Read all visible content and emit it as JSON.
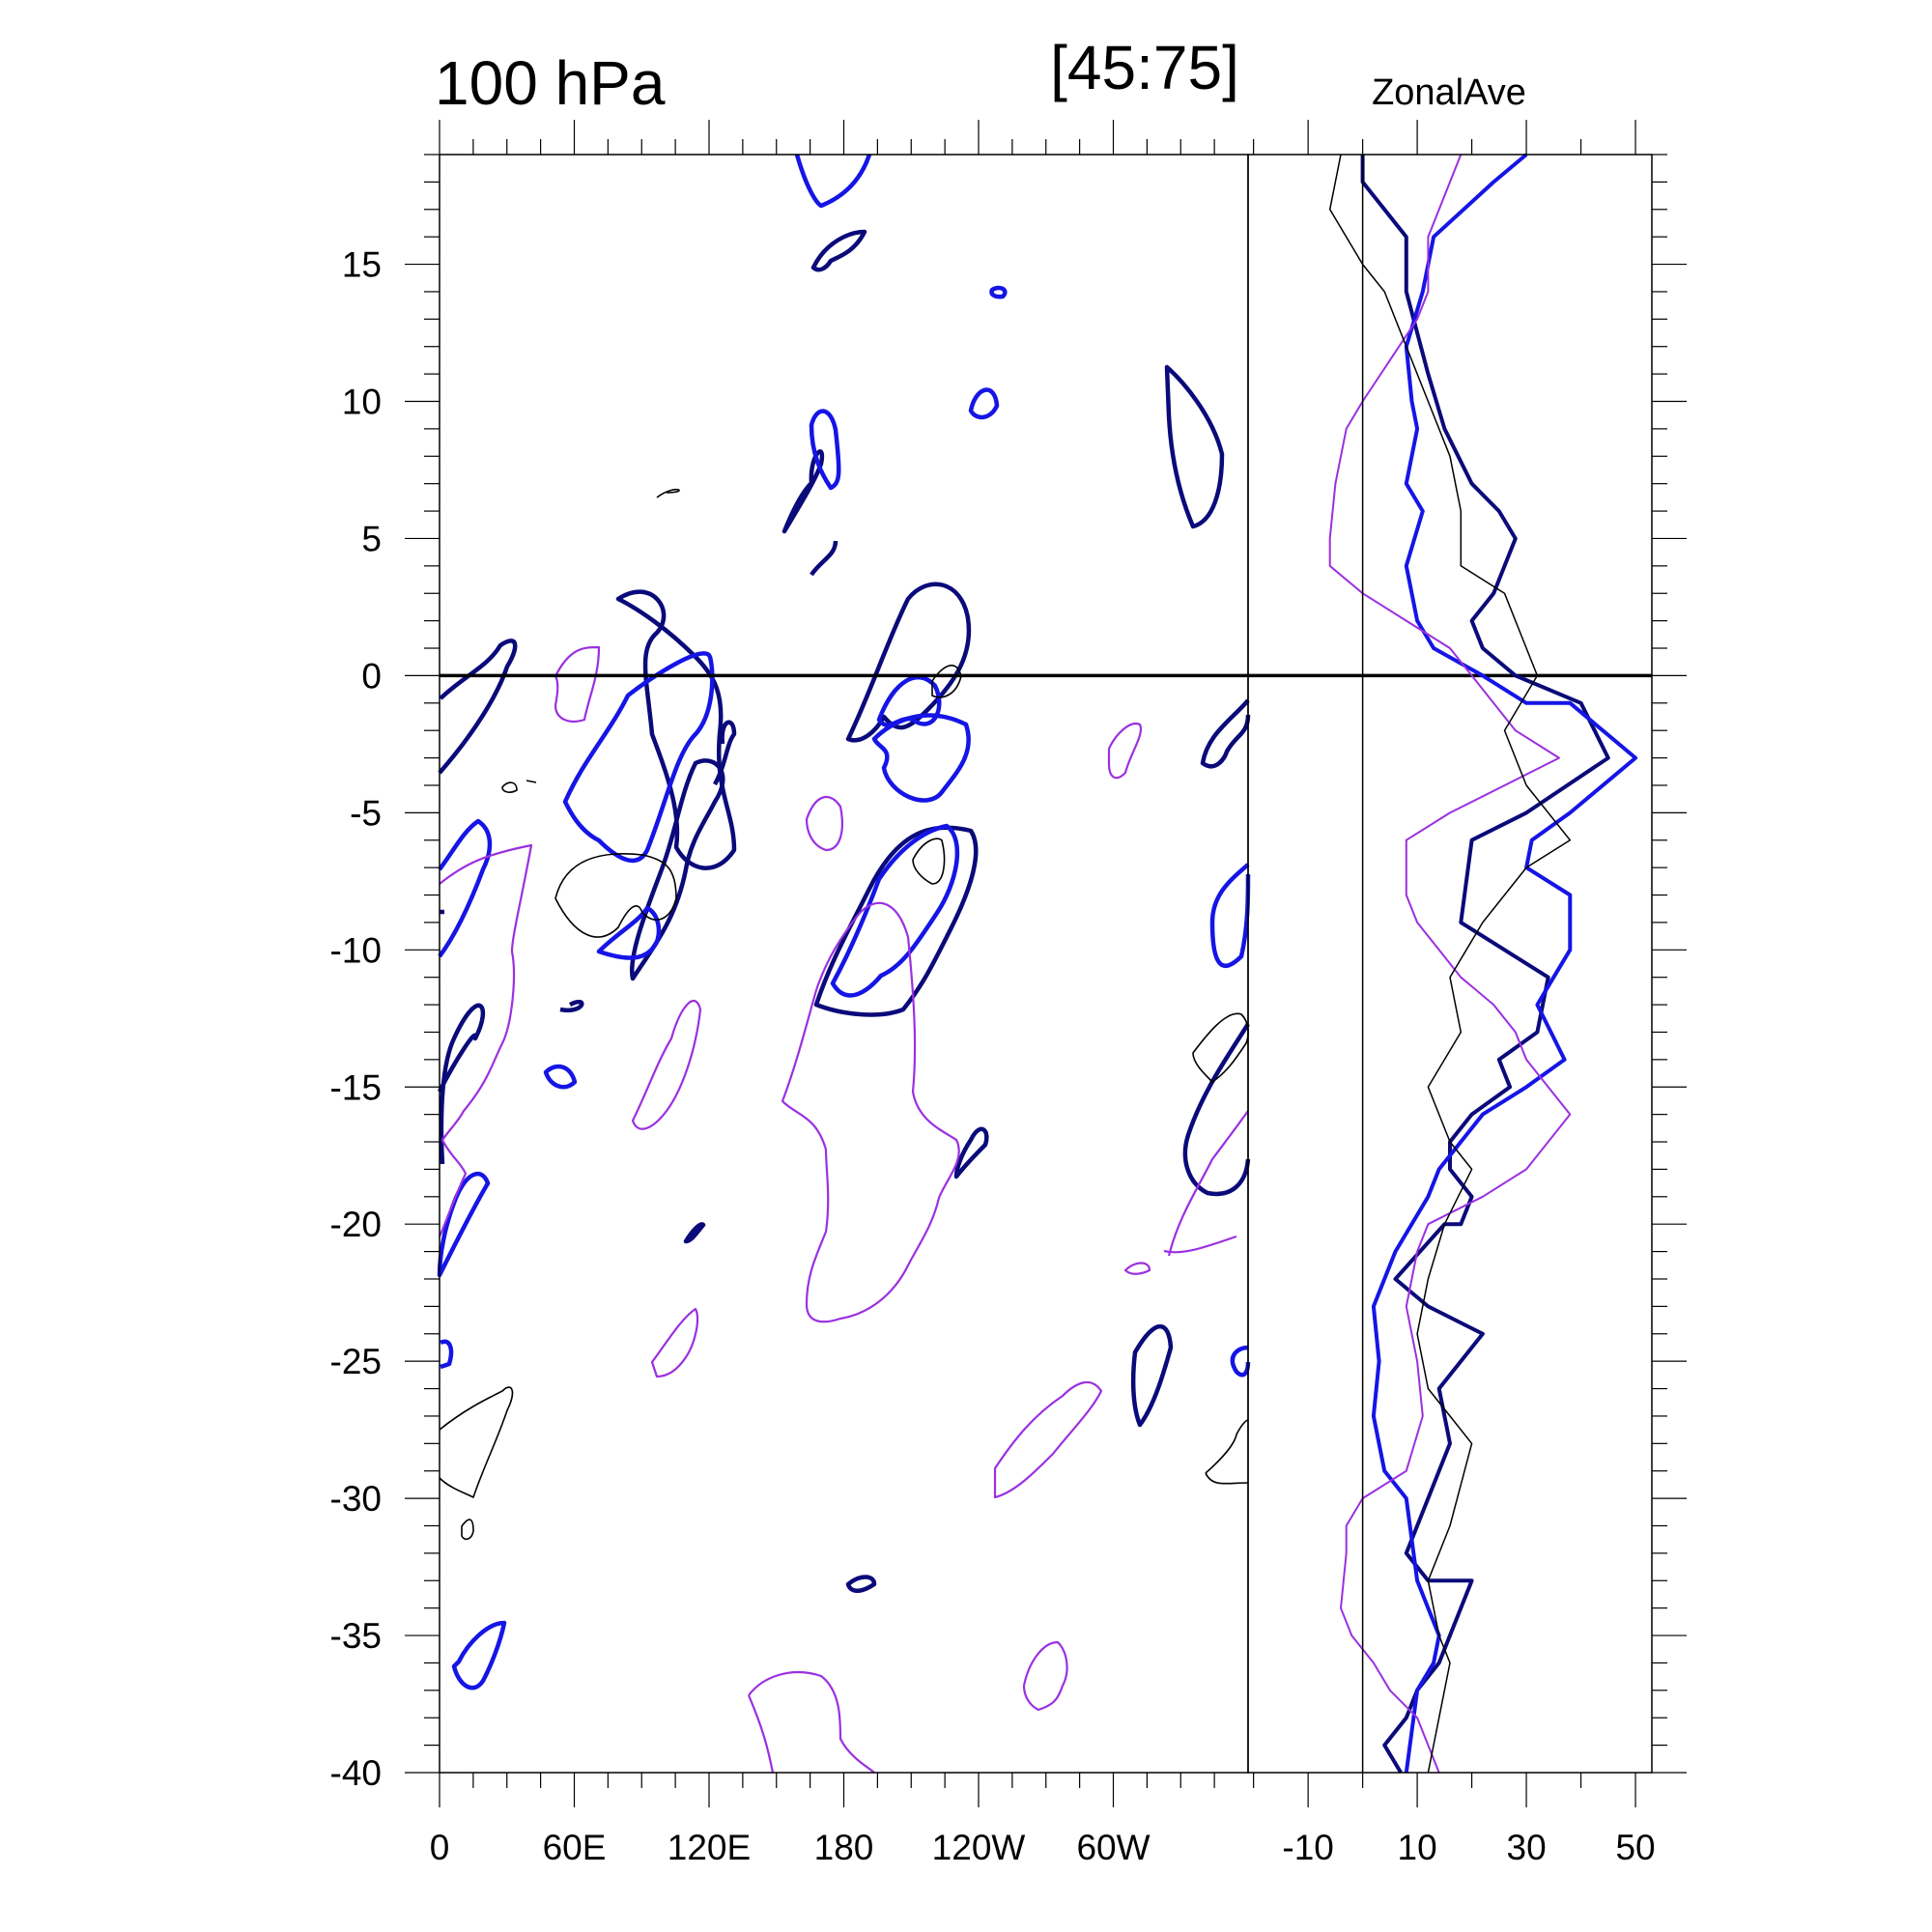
{
  "chart_data": [
    {
      "type": "contour",
      "title_left": "100 hPa",
      "title_center": "[45:75]",
      "x_ticks": [
        "0",
        "60E",
        "120E",
        "180",
        "120W",
        "60W"
      ],
      "y_ticks": [
        "15",
        "10",
        "5",
        "0",
        "-5",
        "-10",
        "-15",
        "-20",
        "-25",
        "-30",
        "-35",
        "-40"
      ],
      "ylim": [
        -40,
        19
      ],
      "reference_line_y": 0,
      "series": [
        {
          "color": "#0a0a7a",
          "linewidth": "thick"
        },
        {
          "color": "#1515e6",
          "linewidth": "thick"
        },
        {
          "color": "#9b30e0",
          "linewidth": "thin"
        },
        {
          "color": "#000000",
          "linewidth": "thin"
        }
      ]
    },
    {
      "type": "line",
      "title": "ZonalAve",
      "x_ticks": [
        "-10",
        "10",
        "30",
        "50"
      ],
      "xlim": [
        -21,
        53
      ],
      "ylim": [
        -40,
        19
      ],
      "reference_line_x": 0,
      "reference_line_y": 0,
      "series": [
        {
          "color": "#0a0a7a",
          "width": 4,
          "points": [
            [
              0,
              19
            ],
            [
              0,
              18
            ],
            [
              8,
              16
            ],
            [
              8,
              14
            ],
            [
              12,
              11
            ],
            [
              15,
              9
            ],
            [
              20,
              7
            ],
            [
              25,
              6
            ],
            [
              28,
              5
            ],
            [
              24,
              3
            ],
            [
              20,
              2
            ],
            [
              22,
              1
            ],
            [
              28,
              0
            ],
            [
              40,
              -1
            ],
            [
              45,
              -3
            ],
            [
              30,
              -5
            ],
            [
              20,
              -6
            ],
            [
              18,
              -9
            ],
            [
              26,
              -10
            ],
            [
              34,
              -11
            ],
            [
              32,
              -13
            ],
            [
              25,
              -14
            ],
            [
              27,
              -15
            ],
            [
              20,
              -16
            ],
            [
              16,
              -17
            ],
            [
              16,
              -18
            ],
            [
              20,
              -19
            ],
            [
              18,
              -20
            ],
            [
              15,
              -20
            ],
            [
              6,
              -22
            ],
            [
              12,
              -23
            ],
            [
              22,
              -24
            ],
            [
              14,
              -26
            ],
            [
              16,
              -28
            ],
            [
              12,
              -30
            ],
            [
              10,
              -31
            ],
            [
              8,
              -32
            ],
            [
              12,
              -33
            ],
            [
              20,
              -33
            ],
            [
              14,
              -36
            ],
            [
              10,
              -37
            ],
            [
              8,
              -38
            ],
            [
              4,
              -39
            ],
            [
              7,
              -40
            ]
          ]
        },
        {
          "color": "#1515e6",
          "width": 4,
          "points": [
            [
              30,
              19
            ],
            [
              24,
              18
            ],
            [
              13,
              16
            ],
            [
              11,
              14
            ],
            [
              8,
              12
            ],
            [
              9,
              10
            ],
            [
              10,
              9
            ],
            [
              8,
              7
            ],
            [
              11,
              6
            ],
            [
              8,
              4
            ],
            [
              10,
              2
            ],
            [
              13,
              1
            ],
            [
              22,
              0
            ],
            [
              30,
              -1
            ],
            [
              38,
              -1
            ],
            [
              50,
              -3
            ],
            [
              38,
              -5
            ],
            [
              31,
              -6
            ],
            [
              30,
              -7
            ],
            [
              38,
              -8
            ],
            [
              38,
              -10
            ],
            [
              35,
              -11
            ],
            [
              32,
              -12
            ],
            [
              37,
              -14
            ],
            [
              30,
              -15
            ],
            [
              22,
              -16
            ],
            [
              18,
              -17
            ],
            [
              14,
              -18
            ],
            [
              12,
              -19
            ],
            [
              6,
              -21
            ],
            [
              2,
              -23
            ],
            [
              3,
              -25
            ],
            [
              2,
              -27
            ],
            [
              4,
              -29
            ],
            [
              8,
              -30
            ],
            [
              10,
              -33
            ],
            [
              14,
              -35
            ],
            [
              13,
              -36
            ],
            [
              10,
              -37
            ],
            [
              8,
              -40
            ]
          ]
        },
        {
          "color": "#9b30e0",
          "width": 2,
          "points": [
            [
              18,
              19
            ],
            [
              12,
              16
            ],
            [
              12,
              14
            ],
            [
              10,
              13
            ],
            [
              0,
              10
            ],
            [
              -3,
              9
            ],
            [
              -5,
              7
            ],
            [
              -6,
              5
            ],
            [
              -6,
              4
            ],
            [
              0,
              3
            ],
            [
              8,
              2
            ],
            [
              16,
              1
            ],
            [
              20,
              0
            ],
            [
              28,
              -2
            ],
            [
              36,
              -3
            ],
            [
              16,
              -5
            ],
            [
              8,
              -6
            ],
            [
              8,
              -8
            ],
            [
              10,
              -9
            ],
            [
              14,
              -10
            ],
            [
              18,
              -11
            ],
            [
              24,
              -12
            ],
            [
              28,
              -13
            ],
            [
              30,
              -14
            ],
            [
              38,
              -16
            ],
            [
              30,
              -18
            ],
            [
              22,
              -19
            ],
            [
              12,
              -20
            ],
            [
              10,
              -21
            ],
            [
              9,
              -22
            ],
            [
              8,
              -23
            ],
            [
              10,
              -25
            ],
            [
              11,
              -27
            ],
            [
              8,
              -29
            ],
            [
              0,
              -30
            ],
            [
              -3,
              -31
            ],
            [
              -3,
              -32
            ],
            [
              -4,
              -34
            ],
            [
              -2,
              -35
            ],
            [
              2,
              -36
            ],
            [
              5,
              -37
            ],
            [
              10,
              -38
            ],
            [
              12,
              -39
            ],
            [
              14,
              -40
            ]
          ]
        },
        {
          "color": "#000000",
          "width": 1.5,
          "points": [
            [
              -4,
              19
            ],
            [
              -6,
              17
            ],
            [
              0,
              15
            ],
            [
              4,
              14
            ],
            [
              8,
              12
            ],
            [
              12,
              10
            ],
            [
              16,
              8
            ],
            [
              18,
              6
            ],
            [
              18,
              5
            ],
            [
              18,
              4
            ],
            [
              26,
              3
            ],
            [
              30,
              1
            ],
            [
              32,
              0
            ],
            [
              26,
              -2
            ],
            [
              30,
              -4
            ],
            [
              38,
              -6
            ],
            [
              30,
              -7
            ],
            [
              22,
              -9
            ],
            [
              16,
              -11
            ],
            [
              18,
              -13
            ],
            [
              12,
              -15
            ],
            [
              16,
              -17
            ],
            [
              20,
              -18
            ],
            [
              15,
              -20
            ],
            [
              12,
              -22
            ],
            [
              10,
              -24
            ],
            [
              12,
              -26
            ],
            [
              16,
              -27
            ],
            [
              20,
              -28
            ],
            [
              16,
              -31
            ],
            [
              12,
              -33
            ],
            [
              14,
              -35
            ],
            [
              16,
              -36
            ],
            [
              14,
              -38
            ],
            [
              12,
              -40
            ]
          ]
        }
      ]
    }
  ]
}
